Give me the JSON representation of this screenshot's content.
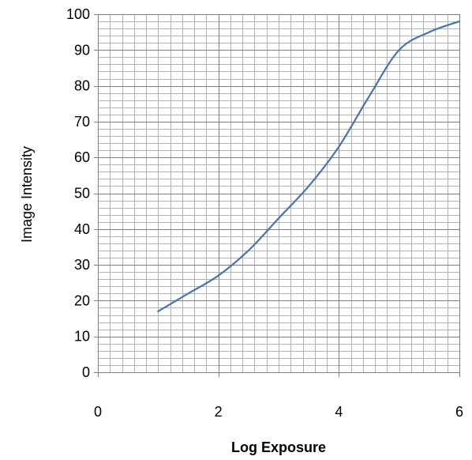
{
  "chart_data": {
    "type": "line",
    "title": "",
    "xlabel": "Log Exposure",
    "ylabel": "Image Intensity",
    "xlim": [
      0,
      6
    ],
    "ylim": [
      0,
      100
    ],
    "x_ticks": [
      0,
      2,
      4,
      6
    ],
    "y_ticks": [
      0,
      10,
      20,
      30,
      40,
      50,
      60,
      70,
      80,
      90,
      100
    ],
    "x_tick_labels": [
      "0",
      "2",
      "4",
      "6"
    ],
    "y_tick_labels": [
      "0",
      "10",
      "20",
      "30",
      "40",
      "50",
      "60",
      "70",
      "80",
      "90",
      "100"
    ],
    "grid": true,
    "legend": "none",
    "series": [
      {
        "color": "#4a72b0",
        "x": [
          1.0,
          1.5,
          2.0,
          2.5,
          3.0,
          3.5,
          4.0,
          4.5,
          5.0,
          5.5,
          6.0
        ],
        "y": [
          17,
          22,
          27,
          34,
          43,
          52,
          63,
          77,
          90,
          95,
          98
        ]
      }
    ]
  }
}
